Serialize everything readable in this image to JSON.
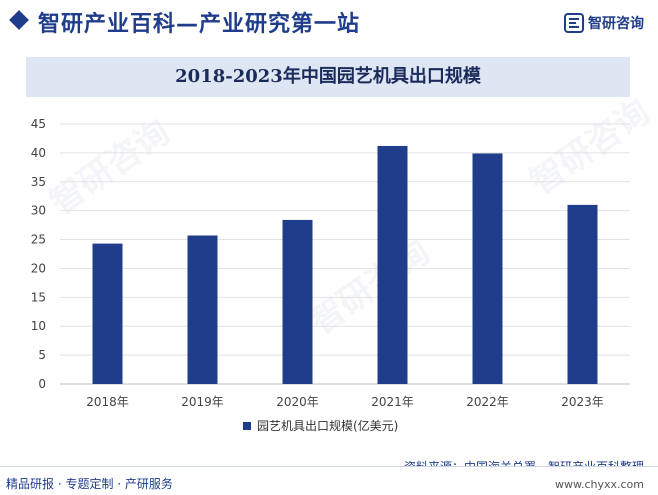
{
  "header": {
    "site_title": "智研产业百科—产业研究第一站",
    "logo_text": "智研咨询"
  },
  "watermark_text": "智研咨询",
  "chart_data": {
    "type": "bar",
    "title": "2018-2023年中国园艺机具出口规模",
    "categories": [
      "2018年",
      "2019年",
      "2020年",
      "2021年",
      "2022年",
      "2023年"
    ],
    "series": [
      {
        "name": "园艺机具出口规模(亿美元)",
        "values": [
          24.3,
          25.7,
          28.4,
          41.2,
          39.9,
          31.0
        ]
      }
    ],
    "xlabel": "",
    "ylabel": "",
    "ylim": [
      0,
      45
    ],
    "yticks": [
      0,
      5,
      10,
      15,
      20,
      25,
      30,
      35,
      40,
      45
    ],
    "grid": true,
    "legend_position": "bottom-center",
    "bar_color": "#1f3d8a"
  },
  "footer": {
    "service_text": "精品研报 · 专题定制 · 产研服务",
    "source_text": "资料来源：中国海关总署、智研产业百科整理",
    "url": "www.chyxx.com"
  }
}
